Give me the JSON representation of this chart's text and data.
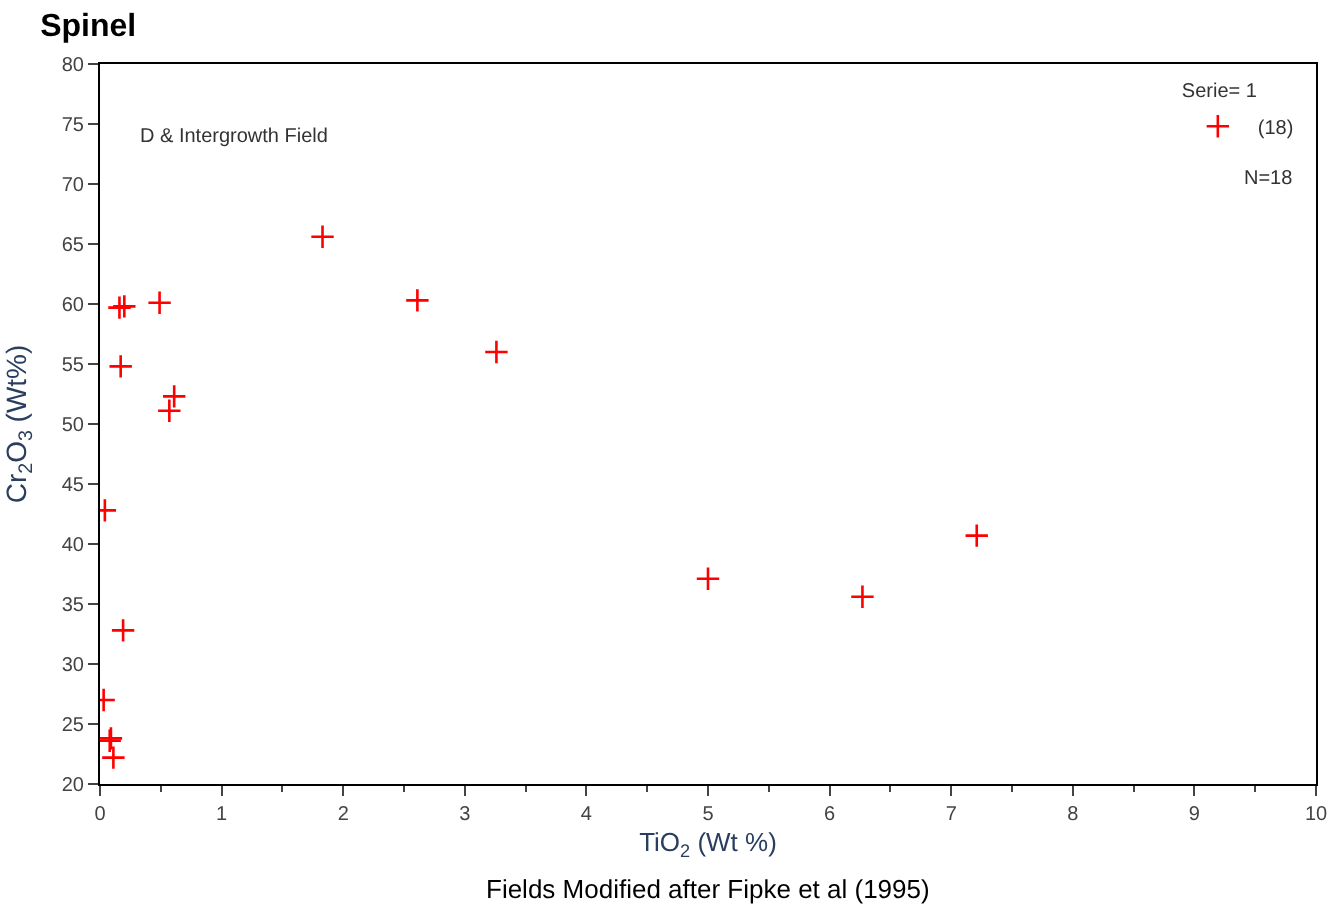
{
  "chart_data": {
    "type": "scatter",
    "title": "Spinel",
    "xlabel": "TiO$_{2}$ (Wt %)",
    "ylabel": "Cr$_{2}$O$_{3}$ (Wt%)",
    "legend_title": "Serie= 1",
    "annotations": [
      "D & Intergrowth Field",
      "N=18",
      "Fields Modified after Fipke et al (1995)"
    ],
    "series": [
      {
        "name": "(18)",
        "color": "#ff0000",
        "x": [
          0.16,
          0.2,
          0.49,
          0.17,
          0.61,
          0.57,
          1.83,
          2.61,
          3.26,
          5.0,
          6.27,
          7.21,
          0.19,
          0.04,
          0.03,
          0.08,
          0.09,
          0.11
        ],
        "values": [
          59.7,
          59.8,
          60.1,
          54.8,
          52.3,
          51.1,
          65.6,
          60.3,
          56.0,
          37.1,
          35.6,
          40.7,
          32.8,
          42.8,
          27.0,
          23.6,
          23.8,
          22.2
        ]
      }
    ],
    "xlim": [
      0,
      10
    ],
    "xticks": [
      0,
      1,
      2,
      3,
      4,
      5,
      6,
      7,
      8,
      9,
      10
    ],
    "ylim": [
      20,
      80
    ],
    "yticks": [
      20,
      25,
      30,
      35,
      40,
      45,
      50,
      55,
      60,
      65,
      70,
      75,
      80
    ],
    "marker": "cross",
    "legend": "top right"
  }
}
